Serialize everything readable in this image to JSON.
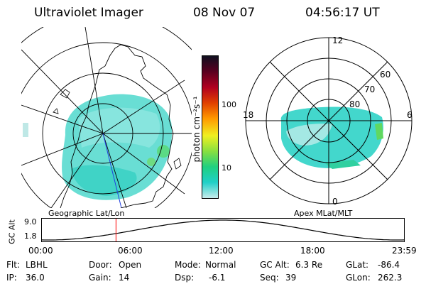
{
  "header": {
    "instrument": "Ultraviolet Imager",
    "date": "08 Nov 07",
    "time": "04:56:17 UT"
  },
  "geo_map": {
    "label": "Geographic Lat/Lon"
  },
  "color_bar": {
    "unit_label": "photon cm⁻²s⁻¹",
    "tick_labels": [
      "100",
      "10"
    ],
    "colors": [
      "#101020",
      "#5a0020",
      "#b00020",
      "#e04000",
      "#ff9900",
      "#f0f020",
      "#88e040",
      "#20d080",
      "#20d0c8",
      "#c8ecec"
    ]
  },
  "polar_plot": {
    "label": "Apex MLat/MLT",
    "mlt_labels": {
      "top": "12",
      "left": "18",
      "right": "6",
      "bottom": "0"
    },
    "lat_labels": [
      "60",
      "70",
      "80"
    ]
  },
  "altitude_plot": {
    "ylabel": "GC Alt",
    "yticks": [
      "9.0",
      "1.8"
    ],
    "xticks": [
      "00:00",
      "06:00",
      "12:00",
      "18:00",
      "23:59"
    ],
    "current_time_marker_hours": 4.94
  },
  "info": {
    "flt_label": "Flt:",
    "flt_value": "LBHL",
    "ip_label": "IP:",
    "ip_value": "36.0",
    "door_label": "Door:",
    "door_value": "Open",
    "gain_label": "Gain:",
    "gain_value": "14",
    "mode_label": "Mode:",
    "mode_value": "Normal",
    "dsp_label": "Dsp:",
    "dsp_value": "-6.1",
    "gcalt_label": "GC Alt:",
    "gcalt_value": "6.3 Re",
    "seq_label": "Seq:",
    "seq_value": "39",
    "glat_label": "GLat:",
    "glat_value": "-86.4",
    "glon_label": "GLon:",
    "glon_value": "262.3"
  }
}
